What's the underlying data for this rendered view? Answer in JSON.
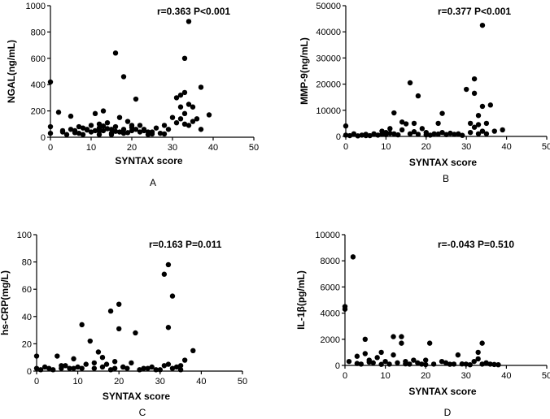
{
  "chart_data": [
    {
      "type": "scatter",
      "panel_label": "A",
      "stat_text": "r=0.363 P<0.001",
      "xlabel": "SYNTAX score",
      "ylabel": "NGAL(ng/mL)",
      "xlim": [
        0,
        50
      ],
      "ylim": [
        0,
        1000
      ],
      "xticks": [
        0,
        10,
        20,
        30,
        40,
        50
      ],
      "yticks": [
        0,
        200,
        400,
        600,
        800,
        1000
      ],
      "x": [
        0,
        0,
        0,
        2,
        3,
        4,
        5,
        5,
        6,
        7,
        7,
        8,
        9,
        10,
        10,
        11,
        12,
        12,
        13,
        13,
        14,
        15,
        15,
        16,
        16,
        17,
        17,
        18,
        18,
        19,
        20,
        20,
        21,
        22,
        22,
        23,
        24,
        25,
        26,
        27,
        28,
        29,
        30,
        31,
        31,
        32,
        32,
        32,
        33,
        33,
        33,
        33,
        34,
        34,
        34,
        35,
        35,
        36,
        37,
        37,
        39,
        3,
        6,
        9,
        12,
        14,
        18,
        20,
        23,
        25,
        12,
        15,
        16,
        19,
        21,
        24,
        28,
        8,
        11,
        13
      ],
      "y": [
        420,
        80,
        30,
        190,
        40,
        20,
        60,
        160,
        50,
        30,
        80,
        20,
        60,
        40,
        90,
        180,
        20,
        70,
        50,
        200,
        110,
        30,
        60,
        640,
        80,
        40,
        150,
        460,
        60,
        120,
        50,
        90,
        290,
        40,
        90,
        60,
        20,
        40,
        70,
        30,
        90,
        60,
        150,
        110,
        300,
        230,
        320,
        140,
        600,
        340,
        180,
        100,
        880,
        250,
        90,
        230,
        120,
        140,
        380,
        60,
        170,
        50,
        35,
        55,
        45,
        65,
        30,
        75,
        50,
        25,
        100,
        20,
        45,
        35,
        60,
        40,
        25,
        70,
        50,
        85
      ]
    },
    {
      "type": "scatter",
      "panel_label": "B",
      "stat_text": "r=0.377 P<0.001",
      "xlabel": "SYNTAX score",
      "ylabel": "MMP-9(ng/mL)",
      "xlim": [
        0,
        50
      ],
      "ylim": [
        0,
        50000
      ],
      "xticks": [
        0,
        10,
        20,
        30,
        40,
        50
      ],
      "yticks": [
        0,
        10000,
        20000,
        30000,
        40000,
        50000
      ],
      "x": [
        0,
        0,
        1,
        2,
        3,
        4,
        5,
        6,
        7,
        8,
        9,
        10,
        10,
        11,
        12,
        12,
        13,
        14,
        15,
        16,
        16,
        17,
        18,
        18,
        19,
        20,
        21,
        22,
        23,
        24,
        24,
        25,
        26,
        27,
        28,
        29,
        30,
        31,
        31,
        32,
        32,
        32,
        33,
        33,
        33,
        34,
        34,
        34,
        35,
        35,
        36,
        37,
        39,
        5,
        9,
        11,
        14,
        17,
        20,
        23
      ],
      "y": [
        4000,
        500,
        300,
        1000,
        200,
        500,
        800,
        300,
        1000,
        500,
        2000,
        700,
        1500,
        3000,
        9000,
        1000,
        600,
        5500,
        4800,
        20500,
        1000,
        5000,
        15500,
        800,
        3000,
        1500,
        500,
        1000,
        5000,
        8800,
        1500,
        700,
        1200,
        800,
        1000,
        400,
        18000,
        5000,
        1500,
        16500,
        22000,
        3500,
        8000,
        4500,
        1000,
        42500,
        11500,
        2000,
        5000,
        1000,
        12000,
        2000,
        2500,
        300,
        800,
        1200,
        2500,
        1800,
        600,
        900
      ]
    },
    {
      "type": "scatter",
      "panel_label": "C",
      "stat_text": "r=0.163 P=0.011",
      "xlabel": "SYNTAX score",
      "ylabel": "hs-CRP(mg/L)",
      "xlim": [
        0,
        50
      ],
      "ylim": [
        0,
        100
      ],
      "xticks": [
        0,
        10,
        20,
        30,
        40,
        50
      ],
      "yticks": [
        0,
        20,
        40,
        60,
        80,
        100
      ],
      "x": [
        0,
        0,
        1,
        2,
        3,
        4,
        5,
        6,
        7,
        8,
        9,
        10,
        11,
        11,
        12,
        13,
        14,
        15,
        16,
        17,
        18,
        19,
        19,
        20,
        20,
        21,
        22,
        23,
        24,
        25,
        26,
        28,
        30,
        31,
        31,
        32,
        32,
        32,
        33,
        33,
        34,
        35,
        36,
        38,
        6,
        9,
        14,
        16,
        18,
        21,
        27,
        29,
        35
      ],
      "y": [
        11,
        2,
        1,
        3,
        2,
        1,
        11,
        2,
        4,
        2,
        9,
        3,
        34,
        2,
        5,
        22,
        2,
        14,
        3,
        5,
        44,
        7,
        2,
        49,
        31,
        3,
        2,
        6,
        28,
        1,
        2,
        3,
        1,
        71,
        4,
        78,
        32,
        5,
        55,
        2,
        3,
        1,
        8,
        15,
        4,
        2,
        6,
        10,
        1,
        3,
        2,
        1,
        4
      ]
    },
    {
      "type": "scatter",
      "panel_label": "D",
      "stat_text": "r=-0.043 P=0.510",
      "xlabel": "SYNTAX score",
      "ylabel": "IL-1β(pg/mL)",
      "xlim": [
        0,
        50
      ],
      "ylim": [
        0,
        10000
      ],
      "xticks": [
        0,
        10,
        20,
        30,
        40,
        50
      ],
      "yticks": [
        0,
        2000,
        4000,
        6000,
        8000,
        10000
      ],
      "x": [
        0,
        0,
        1,
        2,
        3,
        4,
        5,
        5,
        6,
        7,
        8,
        9,
        10,
        11,
        12,
        12,
        13,
        14,
        14,
        15,
        16,
        17,
        18,
        19,
        20,
        21,
        22,
        24,
        25,
        27,
        28,
        30,
        31,
        32,
        33,
        33,
        34,
        34,
        35,
        36,
        38,
        3,
        6,
        9,
        15,
        20,
        26,
        29,
        37
      ],
      "y": [
        4500,
        4300,
        300,
        8300,
        700,
        100,
        2000,
        900,
        400,
        200,
        600,
        1000,
        300,
        100,
        2200,
        800,
        200,
        2200,
        1700,
        300,
        100,
        400,
        200,
        100,
        400,
        1700,
        100,
        300,
        200,
        100,
        800,
        100,
        50,
        300,
        500,
        1000,
        1700,
        100,
        200,
        100,
        50,
        150,
        250,
        80,
        120,
        60,
        90,
        110,
        70
      ]
    }
  ]
}
